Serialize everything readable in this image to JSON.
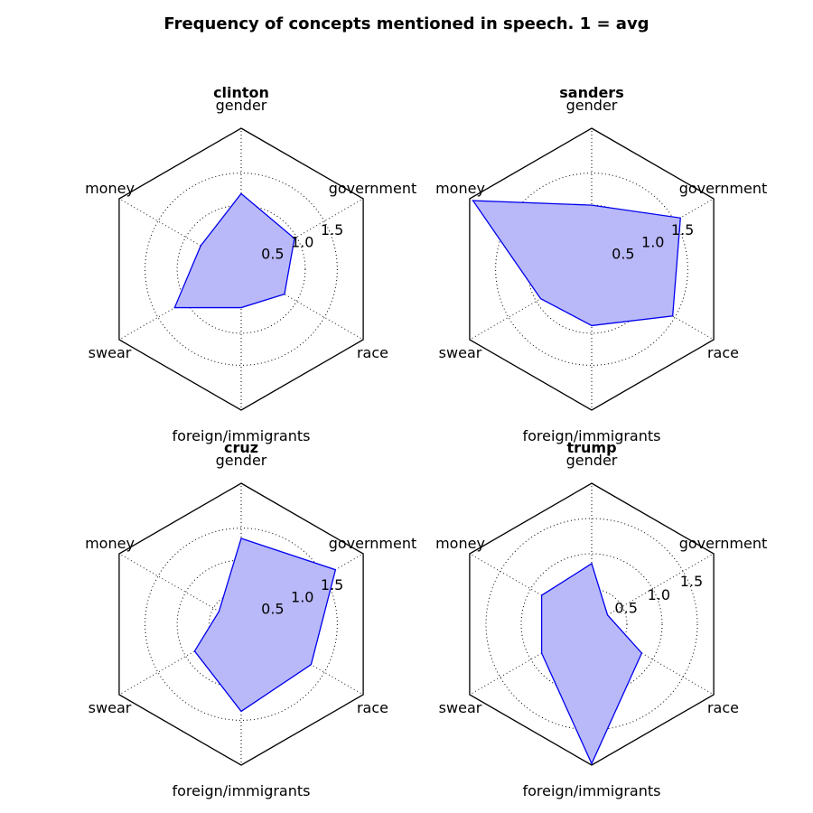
{
  "figure": {
    "title": "Frequency of concepts mentioned in speech. 1 = avg"
  },
  "colors": {
    "fill": "#b9b9f9",
    "line": "#0000ee",
    "frame": "#000000",
    "grid": "#000000",
    "background": "#ffffff"
  },
  "chart_data": [
    {
      "type": "radar",
      "title": "clinton",
      "categories": [
        "gender",
        "government",
        "race",
        "foreign/immigrants",
        "swear",
        "money"
      ],
      "series": [
        {
          "values": [
            1.18,
            0.96,
            0.78,
            0.6,
            1.2,
            0.73
          ]
        }
      ],
      "rlim": [
        0,
        2.2
      ],
      "rticks": [
        0.5,
        1.0,
        1.5
      ],
      "rtick_labels": [
        "0.5",
        "1.0",
        "1.5"
      ],
      "grid": true
    },
    {
      "type": "radar",
      "title": "sanders",
      "categories": [
        "gender",
        "government",
        "race",
        "foreign/immigrants",
        "swear",
        "money"
      ],
      "series": [
        {
          "values": [
            1.0,
            1.6,
            1.46,
            0.88,
            0.92,
            2.14
          ]
        }
      ],
      "rlim": [
        0,
        2.2
      ],
      "rticks": [
        0.5,
        1.0,
        1.5
      ],
      "rtick_labels": [
        "0.5",
        "1.0",
        "1.5"
      ],
      "grid": true
    },
    {
      "type": "radar",
      "title": "cruz",
      "categories": [
        "gender",
        "government",
        "race",
        "foreign/immigrants",
        "swear",
        "money"
      ],
      "series": [
        {
          "values": [
            1.34,
            1.7,
            1.26,
            1.36,
            0.84,
            0.4
          ]
        }
      ],
      "rlim": [
        0,
        2.2
      ],
      "rticks": [
        0.5,
        1.0,
        1.5
      ],
      "rtick_labels": [
        "0.5",
        "1.0",
        "1.5"
      ],
      "grid": true
    },
    {
      "type": "radar",
      "title": "trump",
      "categories": [
        "gender",
        "government",
        "race",
        "foreign/immigrants",
        "swear",
        "money"
      ],
      "series": [
        {
          "values": [
            0.86,
            0.26,
            0.82,
            1.98,
            0.82,
            0.82
          ]
        }
      ],
      "rlim": [
        0,
        2.0
      ],
      "rticks": [
        0.5,
        1.0,
        1.5
      ],
      "rtick_labels": [
        "0.5",
        "1.0",
        "1.5"
      ],
      "grid": true
    }
  ]
}
